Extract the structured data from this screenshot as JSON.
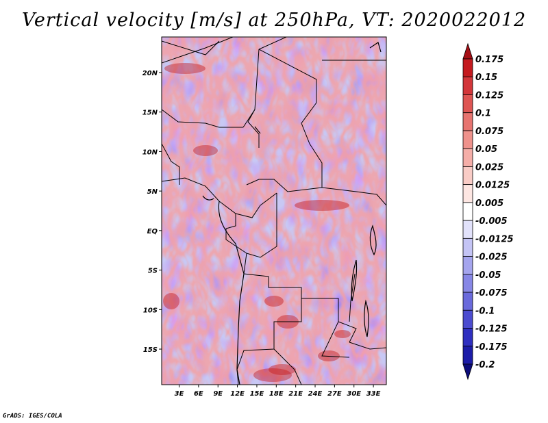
{
  "title": "Vertical velocity [m/s] at 250hPa, VT: 2020022012",
  "credit": "GrADS: IGES/COLA",
  "chart_data": {
    "type": "heatmap",
    "title": "Vertical velocity [m/s] at 250hPa, VT: 2020022012",
    "variable": "Vertical velocity",
    "units": "m/s",
    "level": "250hPa",
    "valid_time": "2020022012",
    "x_ticks": [
      "3E",
      "6E",
      "9E",
      "12E",
      "15E",
      "18E",
      "21E",
      "24E",
      "27E",
      "30E",
      "33E"
    ],
    "y_ticks": [
      "20N",
      "15N",
      "10N",
      "5N",
      "EQ",
      "5S",
      "10S",
      "15S"
    ],
    "xlim": [
      0.3,
      35.0
    ],
    "ylim": [
      -19.5,
      24.5
    ],
    "colorbar_levels": [
      "0.175",
      "0.15",
      "0.125",
      "0.1",
      "0.075",
      "0.05",
      "0.025",
      "0.0125",
      "0.005",
      "-0.005",
      "-0.0125",
      "-0.025",
      "-0.05",
      "-0.075",
      "-0.1",
      "-0.125",
      "-0.175",
      "-0.2"
    ],
    "colorbar_colors": [
      "#a50f15",
      "#c41a1f",
      "#d3363a",
      "#de5553",
      "#e77470",
      "#ef928c",
      "#f5aea8",
      "#f9ccc6",
      "#fde6e2",
      "#ffffff",
      "#e2e2fb",
      "#c4c4f5",
      "#a5a5ee",
      "#8787e6",
      "#6a6adc",
      "#4c4cd0",
      "#2f2fc0",
      "#1c1ca8",
      "#0c0c7a"
    ]
  }
}
